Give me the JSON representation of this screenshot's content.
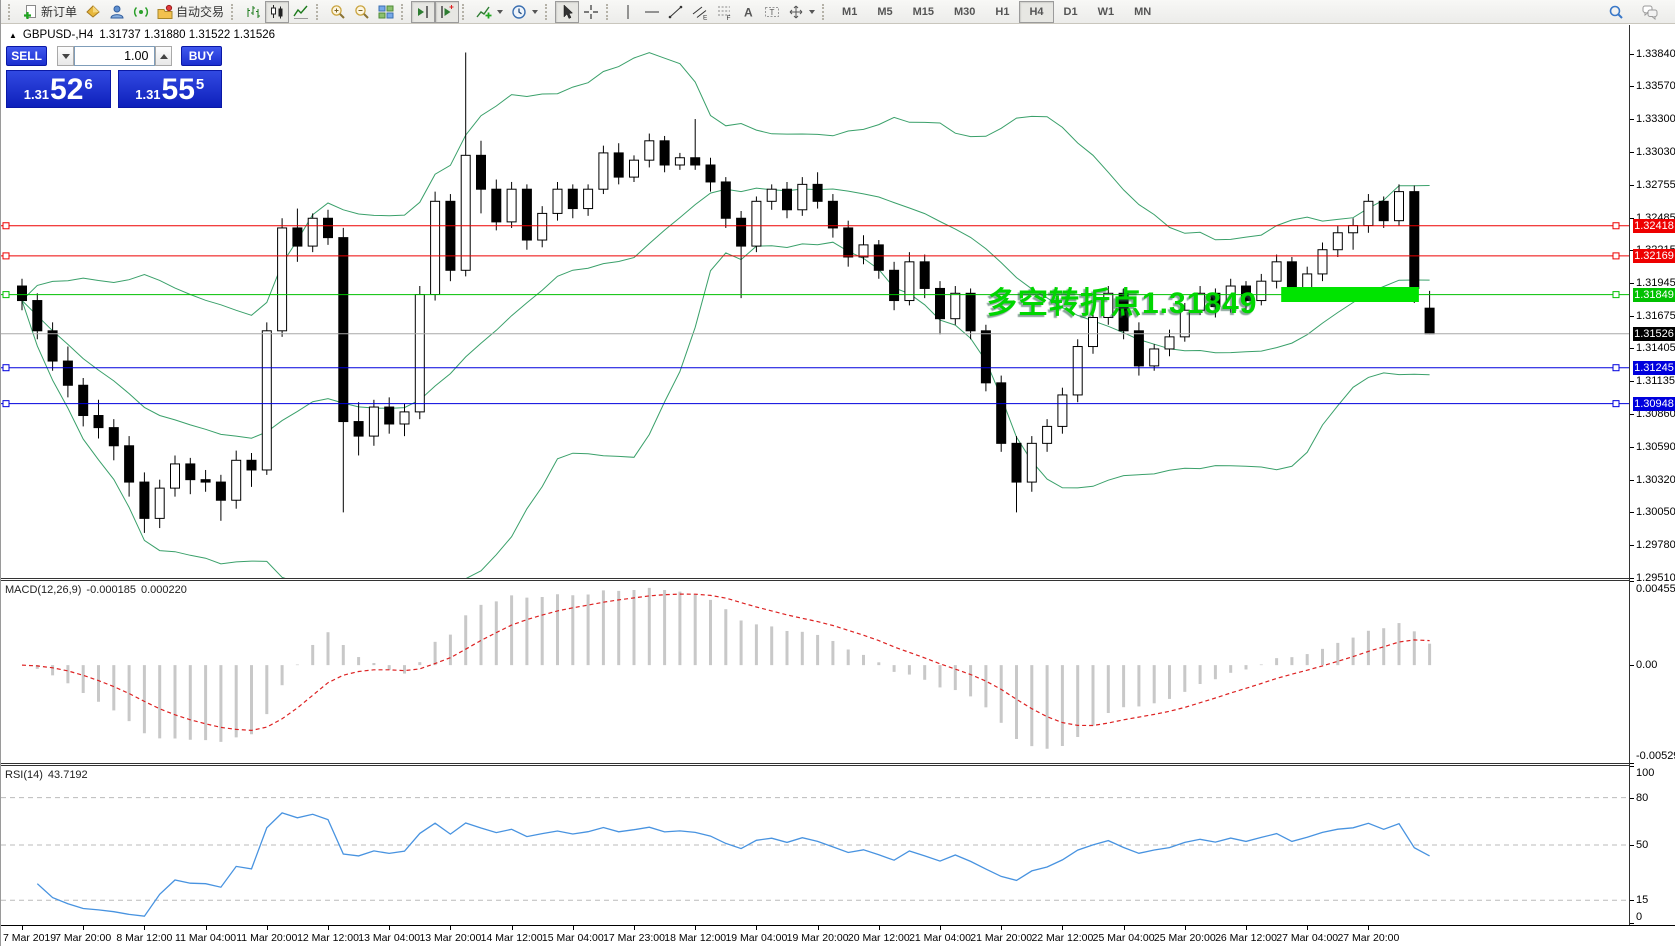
{
  "toolbar": {
    "groups": [
      {
        "items": [
          {
            "name": "new-order-button",
            "icon": "doc-plus",
            "label": "新订单"
          },
          {
            "name": "market-icon-button",
            "icon": "gold-diamond"
          },
          {
            "name": "profile-icon-button",
            "icon": "person"
          },
          {
            "name": "signals-icon-button",
            "icon": "signal"
          },
          {
            "name": "autotrade-button",
            "icon": "autotrade",
            "label": "自动交易"
          }
        ]
      },
      {
        "items": [
          {
            "name": "bar-chart-button",
            "icon": "chart-bars"
          },
          {
            "name": "candle-chart-button",
            "icon": "chart-candles",
            "active": true
          },
          {
            "name": "line-chart-button",
            "icon": "chart-line"
          }
        ]
      },
      {
        "items": [
          {
            "name": "zoom-in-button",
            "icon": "zoom-in"
          },
          {
            "name": "zoom-out-button",
            "icon": "zoom-out"
          },
          {
            "name": "tile-windows-button",
            "icon": "tile-windows"
          }
        ]
      },
      {
        "items": [
          {
            "name": "chart-shift-button",
            "icon": "chart-shift",
            "active": true
          },
          {
            "name": "chart-autoscroll-button",
            "icon": "chart-autoscroll",
            "active": true
          }
        ]
      },
      {
        "items": [
          {
            "name": "indicators-button",
            "icon": "indicators",
            "caret": true
          },
          {
            "name": "periods-button",
            "icon": "clock",
            "caret": true
          }
        ]
      },
      {
        "items": [
          {
            "name": "cursor-button",
            "icon": "cursor",
            "active": true
          },
          {
            "name": "crosshair-button",
            "icon": "crosshair"
          }
        ]
      },
      {
        "items": [
          {
            "name": "vertical-line-button",
            "icon": "vline"
          },
          {
            "name": "horizontal-line-button",
            "icon": "hline"
          },
          {
            "name": "trendline-button",
            "icon": "trendline"
          },
          {
            "name": "channel-button",
            "icon": "channel"
          },
          {
            "name": "fibonacci-button",
            "icon": "fibo"
          },
          {
            "name": "text-button",
            "icon": "text-a"
          },
          {
            "name": "text-label-button",
            "icon": "text-label"
          },
          {
            "name": "shapes-button",
            "icon": "shapes",
            "caret": true
          }
        ]
      },
      {
        "items": [
          {
            "name": "tf-m1-button",
            "label": "M1",
            "tf": true
          },
          {
            "name": "tf-m5-button",
            "label": "M5",
            "tf": true
          },
          {
            "name": "tf-m15-button",
            "label": "M15",
            "tf": true
          },
          {
            "name": "tf-m30-button",
            "label": "M30",
            "tf": true
          },
          {
            "name": "tf-h1-button",
            "label": "H1",
            "tf": true
          },
          {
            "name": "tf-h4-button",
            "label": "H4",
            "tf": true,
            "active": true
          },
          {
            "name": "tf-d1-button",
            "label": "D1",
            "tf": true
          },
          {
            "name": "tf-w1-button",
            "label": "W1",
            "tf": true
          },
          {
            "name": "tf-mn-button",
            "label": "MN",
            "tf": true
          }
        ]
      }
    ],
    "right_icons": [
      {
        "name": "search-icon-button",
        "icon": "search"
      },
      {
        "name": "chat-icon-button",
        "icon": "chat"
      }
    ]
  },
  "chart": {
    "title": {
      "collapse_glyph": "▲",
      "symbol_period": "GBPUSD-,H4",
      "ohlc": "1.31737 1.31880 1.31522 1.31526"
    },
    "one_click": {
      "sell_label": "SELL",
      "buy_label": "BUY",
      "volume": "1.00",
      "sell_big": "1.31",
      "sell_main": "52",
      "sell_sup": "6",
      "buy_big": "1.31",
      "buy_main": "55",
      "buy_sup": "5"
    },
    "annotation": {
      "text": "多空转折点1.31849",
      "color": "#00d600"
    }
  },
  "panes": {
    "macd": {
      "name": "MACD(12,26,9)",
      "main_value": "-0.000185",
      "signal_value": "0.000220",
      "axis": [
        {
          "label": "0.004551",
          "value": 0.004551
        },
        {
          "label": "0.00",
          "value": 0
        },
        {
          "label": "-0.005295",
          "value": -0.005295
        }
      ]
    },
    "rsi": {
      "name": "RSI(14)",
      "value": "43.7192",
      "levels": [
        80,
        50,
        15
      ],
      "axis": [
        {
          "label": "100",
          "value": 100
        },
        {
          "label": "80",
          "value": 80
        },
        {
          "label": "50",
          "value": 50
        },
        {
          "label": "15",
          "value": 15
        },
        {
          "label": "0",
          "value": 0
        }
      ]
    }
  },
  "chart_data": {
    "type": "candlestick",
    "symbol": "GBPUSD-",
    "period": "H4",
    "title": "GBPUSD-,H4",
    "current_bar": {
      "open": 1.31737,
      "high": 1.3188,
      "low": 1.31522,
      "close": 1.31526
    },
    "y_ticks": [
      "1.33840",
      "1.33570",
      "1.33300",
      "1.33030",
      "1.32755",
      "1.32485",
      "1.32215",
      "1.31945",
      "1.31675",
      "1.31405",
      "1.31135",
      "1.30860",
      "1.30590",
      "1.30320",
      "1.30050",
      "1.29780",
      "1.29510"
    ],
    "x_labels": [
      "7 Mar 2019",
      "7 Mar 20:00",
      "8 Mar 12:00",
      "11 Mar 04:00",
      "11 Mar 20:00",
      "12 Mar 12:00",
      "13 Mar 04:00",
      "13 Mar 20:00",
      "14 Mar 12:00",
      "15 Mar 04:00",
      "17 Mar 23:00",
      "18 Mar 12:00",
      "19 Mar 04:00",
      "19 Mar 20:00",
      "20 Mar 12:00",
      "21 Mar 04:00",
      "21 Mar 20:00",
      "22 Mar 12:00",
      "25 Mar 04:00",
      "25 Mar 20:00",
      "26 Mar 12:00",
      "27 Mar 04:00",
      "27 Mar 20:00"
    ],
    "hlines": [
      {
        "price": 1.32418,
        "label": "1.32418",
        "color": "#ee0000"
      },
      {
        "price": 1.32169,
        "label": "1.32169",
        "color": "#ee0000"
      },
      {
        "price": 1.31849,
        "label": "1.31849",
        "color": "#00c000"
      },
      {
        "price": 1.31245,
        "label": "1.31245",
        "color": "#0000dd"
      },
      {
        "price": 1.30948,
        "label": "1.30948",
        "color": "#0000dd"
      }
    ],
    "current_price": {
      "price": 1.31526,
      "label": "1.31526",
      "line_color": "#a8a8a8",
      "tag_color": "#000000"
    },
    "highlight_rect": {
      "bar_start": 82.3,
      "bar_end": 91.3,
      "price_top": 1.31912,
      "price_bottom": 1.31788,
      "color": "#00e400"
    },
    "indicators": {
      "bollinger": {
        "period": 20,
        "deviation": 2,
        "color": "#3aa06a"
      },
      "macd": {
        "fast": 12,
        "slow": 26,
        "signal": 9,
        "current_main": -0.000185,
        "current_signal": 0.00022,
        "scale_max": 0.004551,
        "scale_min": -0.005295
      },
      "rsi": {
        "period": 14,
        "current": 43.7192,
        "levels": [
          80,
          50,
          15
        ],
        "color": "#4893e0"
      }
    },
    "candles": [
      [
        1.3192,
        1.3198,
        1.3172,
        1.318
      ],
      [
        1.318,
        1.3186,
        1.3148,
        1.3155
      ],
      [
        1.3155,
        1.3162,
        1.3122,
        1.313
      ],
      [
        1.313,
        1.3142,
        1.31,
        1.311
      ],
      [
        1.311,
        1.3116,
        1.3076,
        1.3085
      ],
      [
        1.3085,
        1.3098,
        1.3066,
        1.3075
      ],
      [
        1.3075,
        1.3082,
        1.3048,
        1.306
      ],
      [
        1.306,
        1.3068,
        1.3018,
        1.303
      ],
      [
        1.303,
        1.3038,
        1.2988,
        1.3
      ],
      [
        1.3,
        1.3032,
        1.2992,
        1.3025
      ],
      [
        1.3025,
        1.3052,
        1.3018,
        1.3045
      ],
      [
        1.3045,
        1.305,
        1.302,
        1.3032
      ],
      [
        1.3032,
        1.304,
        1.3022,
        1.303
      ],
      [
        1.303,
        1.3036,
        1.2998,
        1.3015
      ],
      [
        1.3015,
        1.3056,
        1.3008,
        1.3048
      ],
      [
        1.3048,
        1.3054,
        1.3026,
        1.304
      ],
      [
        1.304,
        1.3162,
        1.3036,
        1.3155
      ],
      [
        1.3155,
        1.3248,
        1.315,
        1.324
      ],
      [
        1.324,
        1.3256,
        1.3212,
        1.3225
      ],
      [
        1.3225,
        1.3252,
        1.322,
        1.3248
      ],
      [
        1.3248,
        1.3255,
        1.3226,
        1.3232
      ],
      [
        1.3232,
        1.324,
        1.3005,
        1.308
      ],
      [
        1.308,
        1.3096,
        1.3052,
        1.3068
      ],
      [
        1.3068,
        1.3098,
        1.306,
        1.3092
      ],
      [
        1.3092,
        1.31,
        1.307,
        1.3078
      ],
      [
        1.3078,
        1.3095,
        1.3068,
        1.3088
      ],
      [
        1.3088,
        1.3192,
        1.3082,
        1.3185
      ],
      [
        1.3185,
        1.327,
        1.318,
        1.3262
      ],
      [
        1.3262,
        1.3268,
        1.3196,
        1.3205
      ],
      [
        1.3205,
        1.3385,
        1.32,
        1.33
      ],
      [
        1.33,
        1.3312,
        1.3252,
        1.3272
      ],
      [
        1.3272,
        1.328,
        1.3238,
        1.3245
      ],
      [
        1.3245,
        1.3278,
        1.324,
        1.3272
      ],
      [
        1.3272,
        1.3276,
        1.3222,
        1.323
      ],
      [
        1.323,
        1.3258,
        1.3224,
        1.3252
      ],
      [
        1.3252,
        1.3278,
        1.3246,
        1.3272
      ],
      [
        1.3272,
        1.3276,
        1.3248,
        1.3256
      ],
      [
        1.3256,
        1.3276,
        1.325,
        1.3272
      ],
      [
        1.3272,
        1.3308,
        1.3268,
        1.3302
      ],
      [
        1.3302,
        1.331,
        1.3276,
        1.3282
      ],
      [
        1.3282,
        1.33,
        1.3278,
        1.3296
      ],
      [
        1.3296,
        1.3318,
        1.329,
        1.3312
      ],
      [
        1.3312,
        1.3316,
        1.3286,
        1.3292
      ],
      [
        1.3292,
        1.3302,
        1.3288,
        1.3298
      ],
      [
        1.3298,
        1.333,
        1.3288,
        1.3292
      ],
      [
        1.3292,
        1.3298,
        1.327,
        1.3278
      ],
      [
        1.3278,
        1.3282,
        1.324,
        1.3248
      ],
      [
        1.3248,
        1.3254,
        1.3182,
        1.3225
      ],
      [
        1.3225,
        1.3266,
        1.322,
        1.3262
      ],
      [
        1.3262,
        1.3276,
        1.3255,
        1.3272
      ],
      [
        1.3272,
        1.3278,
        1.3248,
        1.3255
      ],
      [
        1.3255,
        1.3282,
        1.325,
        1.3276
      ],
      [
        1.3276,
        1.3286,
        1.3256,
        1.3262
      ],
      [
        1.3262,
        1.3268,
        1.3232,
        1.324
      ],
      [
        1.324,
        1.3246,
        1.3208,
        1.3216
      ],
      [
        1.3216,
        1.3234,
        1.321,
        1.3226
      ],
      [
        1.3226,
        1.323,
        1.3198,
        1.3205
      ],
      [
        1.3205,
        1.3212,
        1.3172,
        1.318
      ],
      [
        1.318,
        1.322,
        1.3176,
        1.3212
      ],
      [
        1.3212,
        1.3218,
        1.3182,
        1.319
      ],
      [
        1.319,
        1.3196,
        1.3152,
        1.3165
      ],
      [
        1.3165,
        1.3192,
        1.316,
        1.3186
      ],
      [
        1.3186,
        1.319,
        1.3148,
        1.3155
      ],
      [
        1.3155,
        1.316,
        1.3105,
        1.3112
      ],
      [
        1.3112,
        1.3118,
        1.3055,
        1.3062
      ],
      [
        1.3062,
        1.3068,
        1.3005,
        1.303
      ],
      [
        1.303,
        1.3068,
        1.3022,
        1.3062
      ],
      [
        1.3062,
        1.3082,
        1.3055,
        1.3076
      ],
      [
        1.3076,
        1.3108,
        1.307,
        1.3102
      ],
      [
        1.3102,
        1.3148,
        1.3096,
        1.3142
      ],
      [
        1.3142,
        1.317,
        1.3136,
        1.3166
      ],
      [
        1.3166,
        1.3192,
        1.316,
        1.3186
      ],
      [
        1.3186,
        1.319,
        1.3148,
        1.3155
      ],
      [
        1.3155,
        1.3162,
        1.3118,
        1.3126
      ],
      [
        1.3126,
        1.3144,
        1.3122,
        1.314
      ],
      [
        1.314,
        1.3156,
        1.3134,
        1.315
      ],
      [
        1.315,
        1.3178,
        1.3146,
        1.3172
      ],
      [
        1.3172,
        1.3192,
        1.3168,
        1.3186
      ],
      [
        1.3186,
        1.319,
        1.3166,
        1.3175
      ],
      [
        1.3175,
        1.3198,
        1.317,
        1.3192
      ],
      [
        1.3192,
        1.3196,
        1.3172,
        1.318
      ],
      [
        1.318,
        1.3202,
        1.3176,
        1.3196
      ],
      [
        1.3196,
        1.3218,
        1.319,
        1.3212
      ],
      [
        1.3212,
        1.3216,
        1.318,
        1.3186
      ],
      [
        1.3186,
        1.3208,
        1.3182,
        1.3202
      ],
      [
        1.3202,
        1.3228,
        1.3196,
        1.3222
      ],
      [
        1.3222,
        1.3242,
        1.3216,
        1.3236
      ],
      [
        1.3236,
        1.3248,
        1.3222,
        1.3242
      ],
      [
        1.3242,
        1.3268,
        1.3236,
        1.3262
      ],
      [
        1.3262,
        1.3266,
        1.324,
        1.3246
      ],
      [
        1.3246,
        1.3276,
        1.3242,
        1.327
      ],
      [
        1.327,
        1.3275,
        1.3178,
        1.319
      ],
      [
        1.31737,
        1.3188,
        1.31522,
        1.31526
      ]
    ]
  }
}
